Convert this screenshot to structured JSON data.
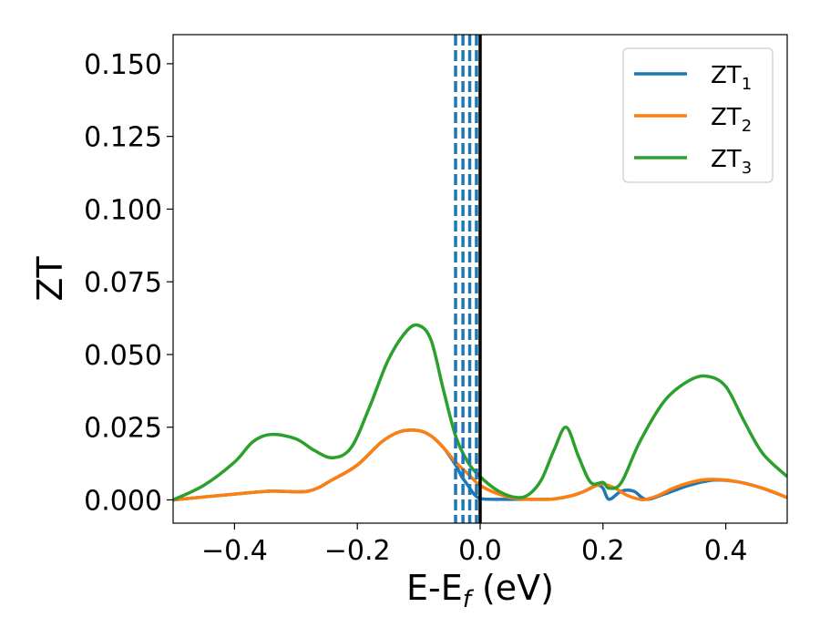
{
  "chart_data": {
    "type": "line",
    "title": "",
    "xlabel": "E-E",
    "xlabel_sub": "f",
    "xlabel_unit": " (eV)",
    "ylabel": "ZT",
    "xlim": [
      -0.5,
      0.5
    ],
    "ylim": [
      -0.008,
      0.16
    ],
    "xticks": [
      -0.4,
      -0.2,
      0.0,
      0.2,
      0.4
    ],
    "xtick_labels": [
      "−0.4",
      "−0.2",
      "0.0",
      "0.2",
      "0.4"
    ],
    "yticks": [
      0.0,
      0.025,
      0.05,
      0.075,
      0.1,
      0.125,
      0.15
    ],
    "ytick_labels": [
      "0.000",
      "0.025",
      "0.050",
      "0.075",
      "0.100",
      "0.125",
      "0.150"
    ],
    "grid": false,
    "legend_position": "top-right",
    "series": [
      {
        "name": "ZT",
        "sub": "1",
        "color": "#1f77b4",
        "x": [
          -0.5,
          -0.4,
          -0.34,
          -0.28,
          -0.24,
          -0.2,
          -0.16,
          -0.13,
          -0.1,
          -0.08,
          -0.06,
          -0.04,
          -0.03,
          -0.02,
          -0.01,
          0.0,
          0.02,
          0.05,
          0.1,
          0.12,
          0.15,
          0.17,
          0.19,
          0.2,
          0.21,
          0.23,
          0.25,
          0.27,
          0.3,
          0.34,
          0.38,
          0.42,
          0.46,
          0.5
        ],
        "y": [
          0.0,
          0.002,
          0.003,
          0.003,
          0.007,
          0.012,
          0.02,
          0.0235,
          0.0238,
          0.022,
          0.018,
          0.012,
          0.008,
          0.005,
          0.002,
          0.0005,
          0.0002,
          0.0002,
          0.0002,
          0.0003,
          0.0015,
          0.003,
          0.005,
          0.004,
          0.0002,
          0.003,
          0.003,
          0.0002,
          0.002,
          0.005,
          0.0068,
          0.0062,
          0.004,
          0.0008
        ]
      },
      {
        "name": "ZT",
        "sub": "2",
        "color": "#ff7f0e",
        "x": [
          -0.5,
          -0.4,
          -0.34,
          -0.28,
          -0.24,
          -0.2,
          -0.16,
          -0.13,
          -0.1,
          -0.08,
          -0.06,
          -0.04,
          -0.02,
          0.0,
          0.03,
          0.06,
          0.1,
          0.12,
          0.15,
          0.17,
          0.19,
          0.2,
          0.22,
          0.24,
          0.26,
          0.27,
          0.29,
          0.32,
          0.36,
          0.39,
          0.42,
          0.46,
          0.5
        ],
        "y": [
          0.0,
          0.002,
          0.003,
          0.003,
          0.007,
          0.012,
          0.02,
          0.0235,
          0.0238,
          0.022,
          0.018,
          0.013,
          0.009,
          0.005,
          0.002,
          0.0004,
          0.0002,
          0.0003,
          0.0015,
          0.003,
          0.005,
          0.0055,
          0.004,
          0.0015,
          0.0002,
          0.0002,
          0.0015,
          0.0045,
          0.0068,
          0.007,
          0.0062,
          0.004,
          0.0008
        ]
      },
      {
        "name": "ZT",
        "sub": "3",
        "color": "#2ca02c",
        "x": [
          -0.5,
          -0.45,
          -0.4,
          -0.37,
          -0.34,
          -0.3,
          -0.27,
          -0.24,
          -0.21,
          -0.18,
          -0.15,
          -0.12,
          -0.1,
          -0.08,
          -0.06,
          -0.04,
          -0.02,
          0.0,
          0.03,
          0.06,
          0.08,
          0.1,
          0.12,
          0.14,
          0.16,
          0.18,
          0.2,
          0.21,
          0.23,
          0.26,
          0.3,
          0.34,
          0.37,
          0.4,
          0.43,
          0.46,
          0.5
        ],
        "y": [
          0.0,
          0.005,
          0.013,
          0.02,
          0.0225,
          0.021,
          0.017,
          0.0145,
          0.018,
          0.032,
          0.048,
          0.058,
          0.06,
          0.055,
          0.038,
          0.022,
          0.013,
          0.008,
          0.003,
          0.0008,
          0.002,
          0.007,
          0.017,
          0.025,
          0.015,
          0.006,
          0.006,
          0.004,
          0.006,
          0.02,
          0.034,
          0.041,
          0.0425,
          0.039,
          0.027,
          0.016,
          0.008
        ]
      }
    ],
    "vlines": [
      {
        "x": 0.0,
        "style": "solid",
        "color": "#000000"
      },
      {
        "x": -0.04,
        "style": "dashed",
        "color": "#1f77b4"
      },
      {
        "x": -0.028,
        "style": "dashed",
        "color": "#1f77b4"
      },
      {
        "x": -0.017,
        "style": "dashed",
        "color": "#1f77b4"
      },
      {
        "x": -0.006,
        "style": "dashed",
        "color": "#1f77b4"
      }
    ]
  }
}
